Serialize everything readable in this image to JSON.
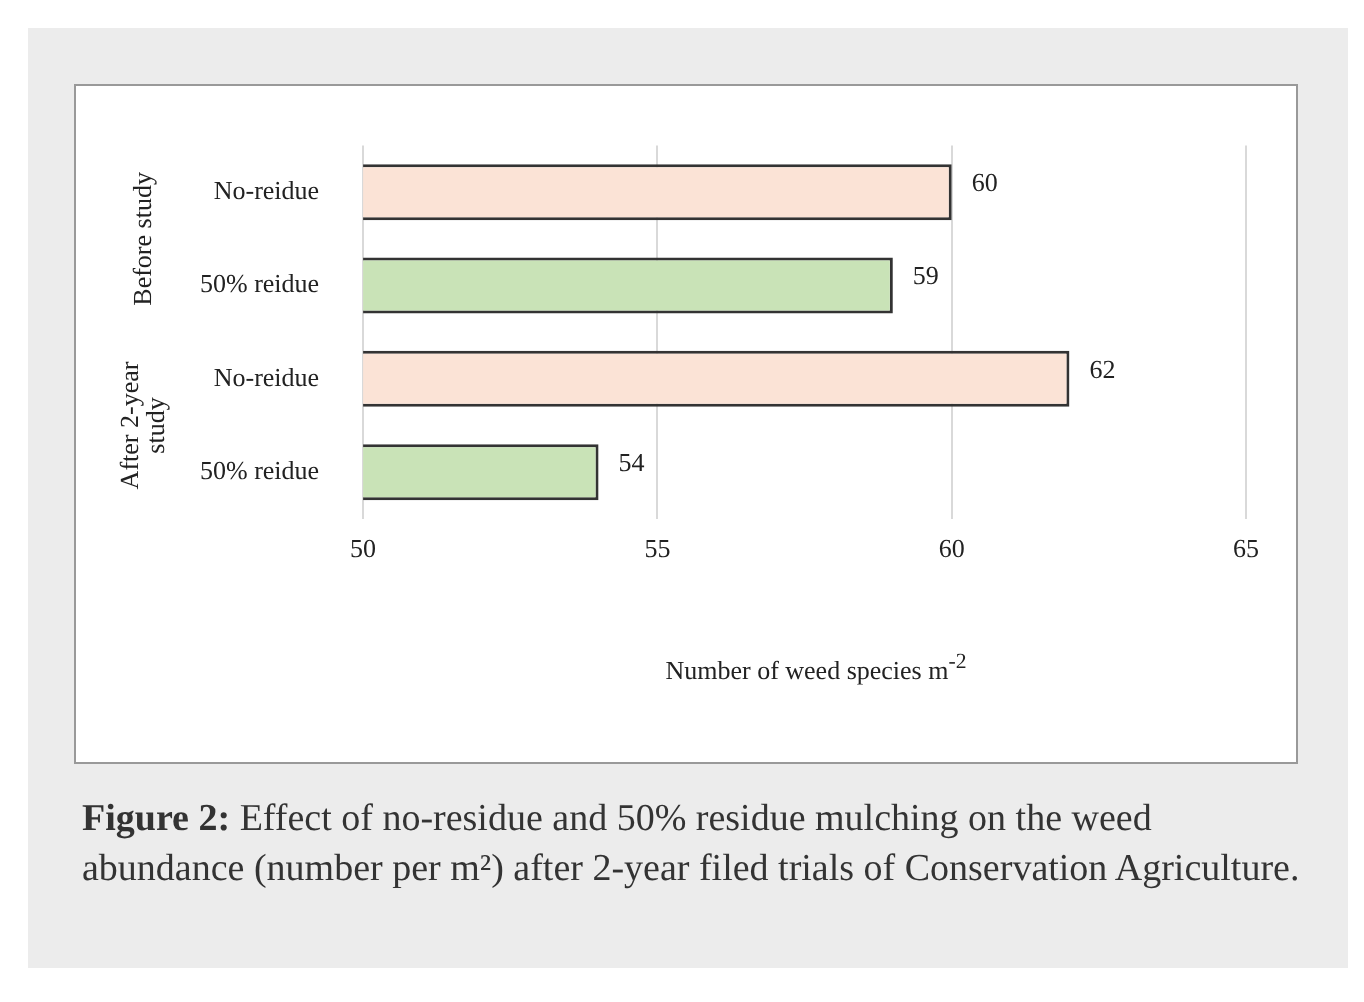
{
  "chart_data": {
    "type": "bar",
    "orientation": "horizontal",
    "categories": [
      "No-reidue",
      "50% reidue",
      "No-reidue",
      "50% reidue"
    ],
    "values": [
      60,
      59,
      62,
      54
    ],
    "colors": [
      "#fbe3d6",
      "#c9e3b7",
      "#fbe3d6",
      "#c9e3b7"
    ],
    "xlim": [
      50,
      65
    ],
    "xticks": [
      50,
      55,
      60,
      65
    ],
    "grid": "x",
    "data_labels": true,
    "xlabel": "Number of weed species m$^{-2}$",
    "annotations": [
      "Before study",
      "After 2-year study",
      "Figure 2: Effect of no-residue and 50% residue mulching on the weed abundance (number per m²) after 2-year filed trials of Conservation Agriculture."
    ]
  }
}
